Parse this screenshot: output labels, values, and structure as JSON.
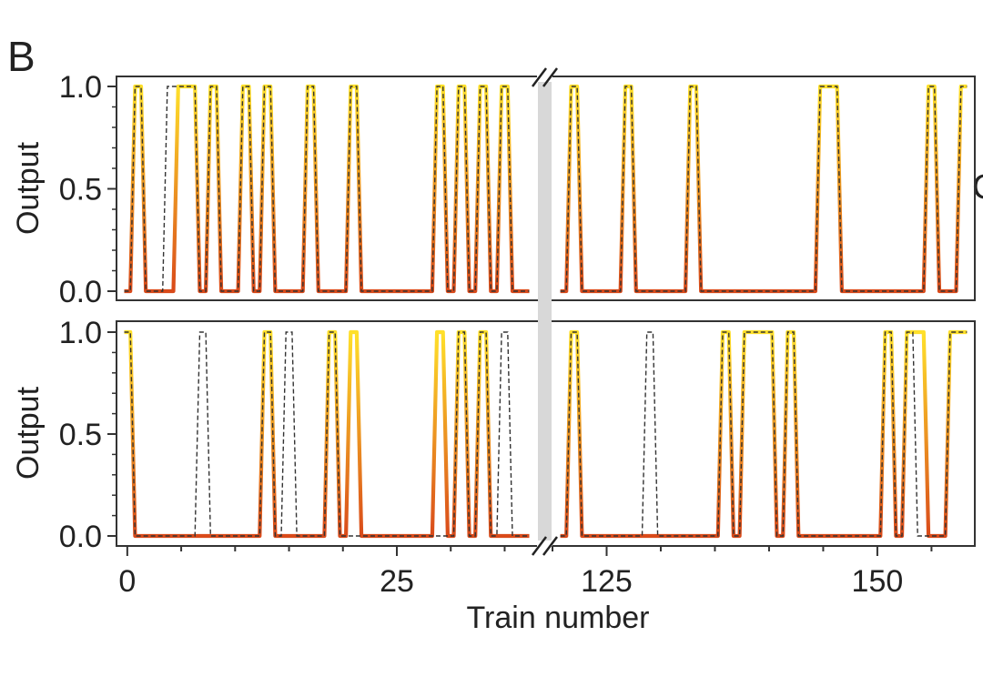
{
  "panel_label": "B",
  "partial_label": "C",
  "chart_data": {
    "type": "line",
    "xlabel": "Train number",
    "ylabel": "Output",
    "ylim": [
      0.0,
      1.0
    ],
    "yticks": [
      "0.0",
      "0.5",
      "1.0"
    ],
    "broken_x_axis": true,
    "x_segments": [
      {
        "xlim": [
          -1,
          38
        ],
        "ticks": [
          0,
          25
        ]
      },
      {
        "xlim": [
          120,
          159
        ],
        "ticks": [
          125,
          150
        ]
      }
    ],
    "xtick_labels": [
      "0",
      "25",
      "125",
      "150"
    ],
    "colors": {
      "high": "#ffe02a",
      "low": "#d94a1a",
      "reference": "#333333",
      "axis_break": "#d8d8d8"
    },
    "panels": [
      {
        "ylabel": "Output",
        "series": [
          {
            "role": "trained",
            "style": "solid-gradient",
            "segments": [
              {
                "x": [
                  0,
                  1,
                  2,
                  3,
                  4,
                  5,
                  6,
                  7,
                  8,
                  9,
                  10,
                  11,
                  12,
                  13,
                  14,
                  15,
                  16,
                  17,
                  18,
                  19,
                  20,
                  21,
                  22,
                  23,
                  24,
                  25,
                  26,
                  27,
                  28,
                  29,
                  30,
                  31,
                  32,
                  33,
                  34,
                  35,
                  36,
                  37
                ],
                "y": [
                  0,
                  1,
                  0,
                  0,
                  0,
                  1,
                  1,
                  0,
                  1,
                  0,
                  0,
                  1,
                  0,
                  1,
                  0,
                  0,
                  0,
                  1,
                  0,
                  0,
                  0,
                  1,
                  0,
                  0,
                  0,
                  0,
                  0,
                  0,
                  0,
                  1,
                  0,
                  1,
                  0,
                  1,
                  0,
                  1,
                  0,
                  0
                ]
              },
              {
                "x": [
                  121,
                  122,
                  123,
                  124,
                  125,
                  126,
                  127,
                  128,
                  129,
                  130,
                  131,
                  132,
                  133,
                  134,
                  135,
                  136,
                  137,
                  138,
                  139,
                  140,
                  141,
                  142,
                  143,
                  144,
                  145,
                  146,
                  147,
                  148,
                  149,
                  150,
                  151,
                  152,
                  153,
                  154,
                  155,
                  156,
                  157,
                  158
                ],
                "y": [
                  0,
                  1,
                  0,
                  0,
                  0,
                  0,
                  1,
                  0,
                  0,
                  0,
                  0,
                  0,
                  1,
                  0,
                  0,
                  0,
                  0,
                  0,
                  0,
                  0,
                  0,
                  0,
                  0,
                  0,
                  1,
                  1,
                  0,
                  0,
                  0,
                  0,
                  0,
                  0,
                  0,
                  0,
                  1,
                  0,
                  0,
                  1
                ]
              }
            ]
          },
          {
            "role": "reference",
            "style": "dashed",
            "segments": [
              {
                "x": [
                  0,
                  1,
                  2,
                  3,
                  4,
                  5,
                  6,
                  7,
                  8,
                  9,
                  10,
                  11,
                  12,
                  13,
                  14,
                  15,
                  16,
                  17,
                  18,
                  19,
                  20,
                  21,
                  22,
                  23,
                  24,
                  25,
                  26,
                  27,
                  28,
                  29,
                  30,
                  31,
                  32,
                  33,
                  34,
                  35,
                  36,
                  37
                ],
                "y": [
                  0,
                  1,
                  0,
                  0,
                  1,
                  1,
                  1,
                  0,
                  1,
                  0,
                  0,
                  1,
                  0,
                  1,
                  0,
                  0,
                  0,
                  1,
                  0,
                  0,
                  0,
                  1,
                  0,
                  0,
                  0,
                  0,
                  0,
                  0,
                  0,
                  1,
                  0,
                  1,
                  0,
                  1,
                  0,
                  1,
                  0,
                  0
                ]
              },
              {
                "x": [
                  121,
                  122,
                  123,
                  124,
                  125,
                  126,
                  127,
                  128,
                  129,
                  130,
                  131,
                  132,
                  133,
                  134,
                  135,
                  136,
                  137,
                  138,
                  139,
                  140,
                  141,
                  142,
                  143,
                  144,
                  145,
                  146,
                  147,
                  148,
                  149,
                  150,
                  151,
                  152,
                  153,
                  154,
                  155,
                  156,
                  157,
                  158
                ],
                "y": [
                  0,
                  1,
                  0,
                  0,
                  0,
                  0,
                  1,
                  0,
                  0,
                  0,
                  0,
                  0,
                  1,
                  0,
                  0,
                  0,
                  0,
                  0,
                  0,
                  0,
                  0,
                  0,
                  0,
                  0,
                  1,
                  1,
                  0,
                  0,
                  0,
                  0,
                  0,
                  0,
                  0,
                  0,
                  1,
                  0,
                  0,
                  1
                ]
              }
            ]
          }
        ]
      },
      {
        "ylabel": "Output",
        "series": [
          {
            "role": "trained",
            "style": "solid-gradient",
            "segments": [
              {
                "x": [
                  0,
                  1,
                  2,
                  3,
                  4,
                  5,
                  6,
                  7,
                  8,
                  9,
                  10,
                  11,
                  12,
                  13,
                  14,
                  15,
                  16,
                  17,
                  18,
                  19,
                  20,
                  21,
                  22,
                  23,
                  24,
                  25,
                  26,
                  27,
                  28,
                  29,
                  30,
                  31,
                  32,
                  33,
                  34,
                  35,
                  36,
                  37
                ],
                "y": [
                  1,
                  0,
                  0,
                  0,
                  0,
                  0,
                  0,
                  0,
                  0,
                  0,
                  0,
                  0,
                  0,
                  1,
                  0,
                  0,
                  0,
                  0,
                  0,
                  1,
                  0,
                  1,
                  0,
                  0,
                  0,
                  0,
                  0,
                  0,
                  0,
                  1,
                  0,
                  1,
                  0,
                  1,
                  0,
                  0,
                  0,
                  0
                ]
              },
              {
                "x": [
                  121,
                  122,
                  123,
                  124,
                  125,
                  126,
                  127,
                  128,
                  129,
                  130,
                  131,
                  132,
                  133,
                  134,
                  135,
                  136,
                  137,
                  138,
                  139,
                  140,
                  141,
                  142,
                  143,
                  144,
                  145,
                  146,
                  147,
                  148,
                  149,
                  150,
                  151,
                  152,
                  153,
                  154,
                  155,
                  156,
                  157,
                  158
                ],
                "y": [
                  0,
                  1,
                  0,
                  0,
                  0,
                  0,
                  0,
                  0,
                  0,
                  0,
                  0,
                  0,
                  0,
                  0,
                  0,
                  1,
                  0,
                  1,
                  1,
                  1,
                  0,
                  1,
                  0,
                  0,
                  0,
                  0,
                  0,
                  0,
                  0,
                  0,
                  1,
                  0,
                  1,
                  1,
                  0,
                  0,
                  1,
                  1
                ]
              }
            ]
          },
          {
            "role": "reference",
            "style": "dashed",
            "segments": [
              {
                "x": [
                  0,
                  1,
                  2,
                  3,
                  4,
                  5,
                  6,
                  7,
                  8,
                  9,
                  10,
                  11,
                  12,
                  13,
                  14,
                  15,
                  16,
                  17,
                  18,
                  19,
                  20,
                  21,
                  22,
                  23,
                  24,
                  25,
                  26,
                  27,
                  28,
                  29,
                  30,
                  31,
                  32,
                  33,
                  34,
                  35,
                  36,
                  37
                ],
                "y": [
                  1,
                  0,
                  0,
                  0,
                  0,
                  0,
                  0,
                  1,
                  0,
                  0,
                  0,
                  0,
                  0,
                  1,
                  0,
                  1,
                  0,
                  0,
                  0,
                  1,
                  0,
                  0,
                  0,
                  0,
                  0,
                  0,
                  0,
                  0,
                  0,
                  0,
                  0,
                  1,
                  0,
                  1,
                  0,
                  1,
                  0,
                  0
                ]
              },
              {
                "x": [
                  121,
                  122,
                  123,
                  124,
                  125,
                  126,
                  127,
                  128,
                  129,
                  130,
                  131,
                  132,
                  133,
                  134,
                  135,
                  136,
                  137,
                  138,
                  139,
                  140,
                  141,
                  142,
                  143,
                  144,
                  145,
                  146,
                  147,
                  148,
                  149,
                  150,
                  151,
                  152,
                  153,
                  154,
                  155,
                  156,
                  157,
                  158
                ],
                "y": [
                  0,
                  1,
                  0,
                  0,
                  0,
                  0,
                  0,
                  0,
                  1,
                  0,
                  0,
                  0,
                  0,
                  0,
                  0,
                  1,
                  0,
                  1,
                  1,
                  1,
                  0,
                  1,
                  0,
                  0,
                  0,
                  0,
                  0,
                  0,
                  0,
                  0,
                  1,
                  0,
                  1,
                  0,
                  0,
                  0,
                  1,
                  1
                ]
              }
            ]
          }
        ]
      }
    ]
  }
}
